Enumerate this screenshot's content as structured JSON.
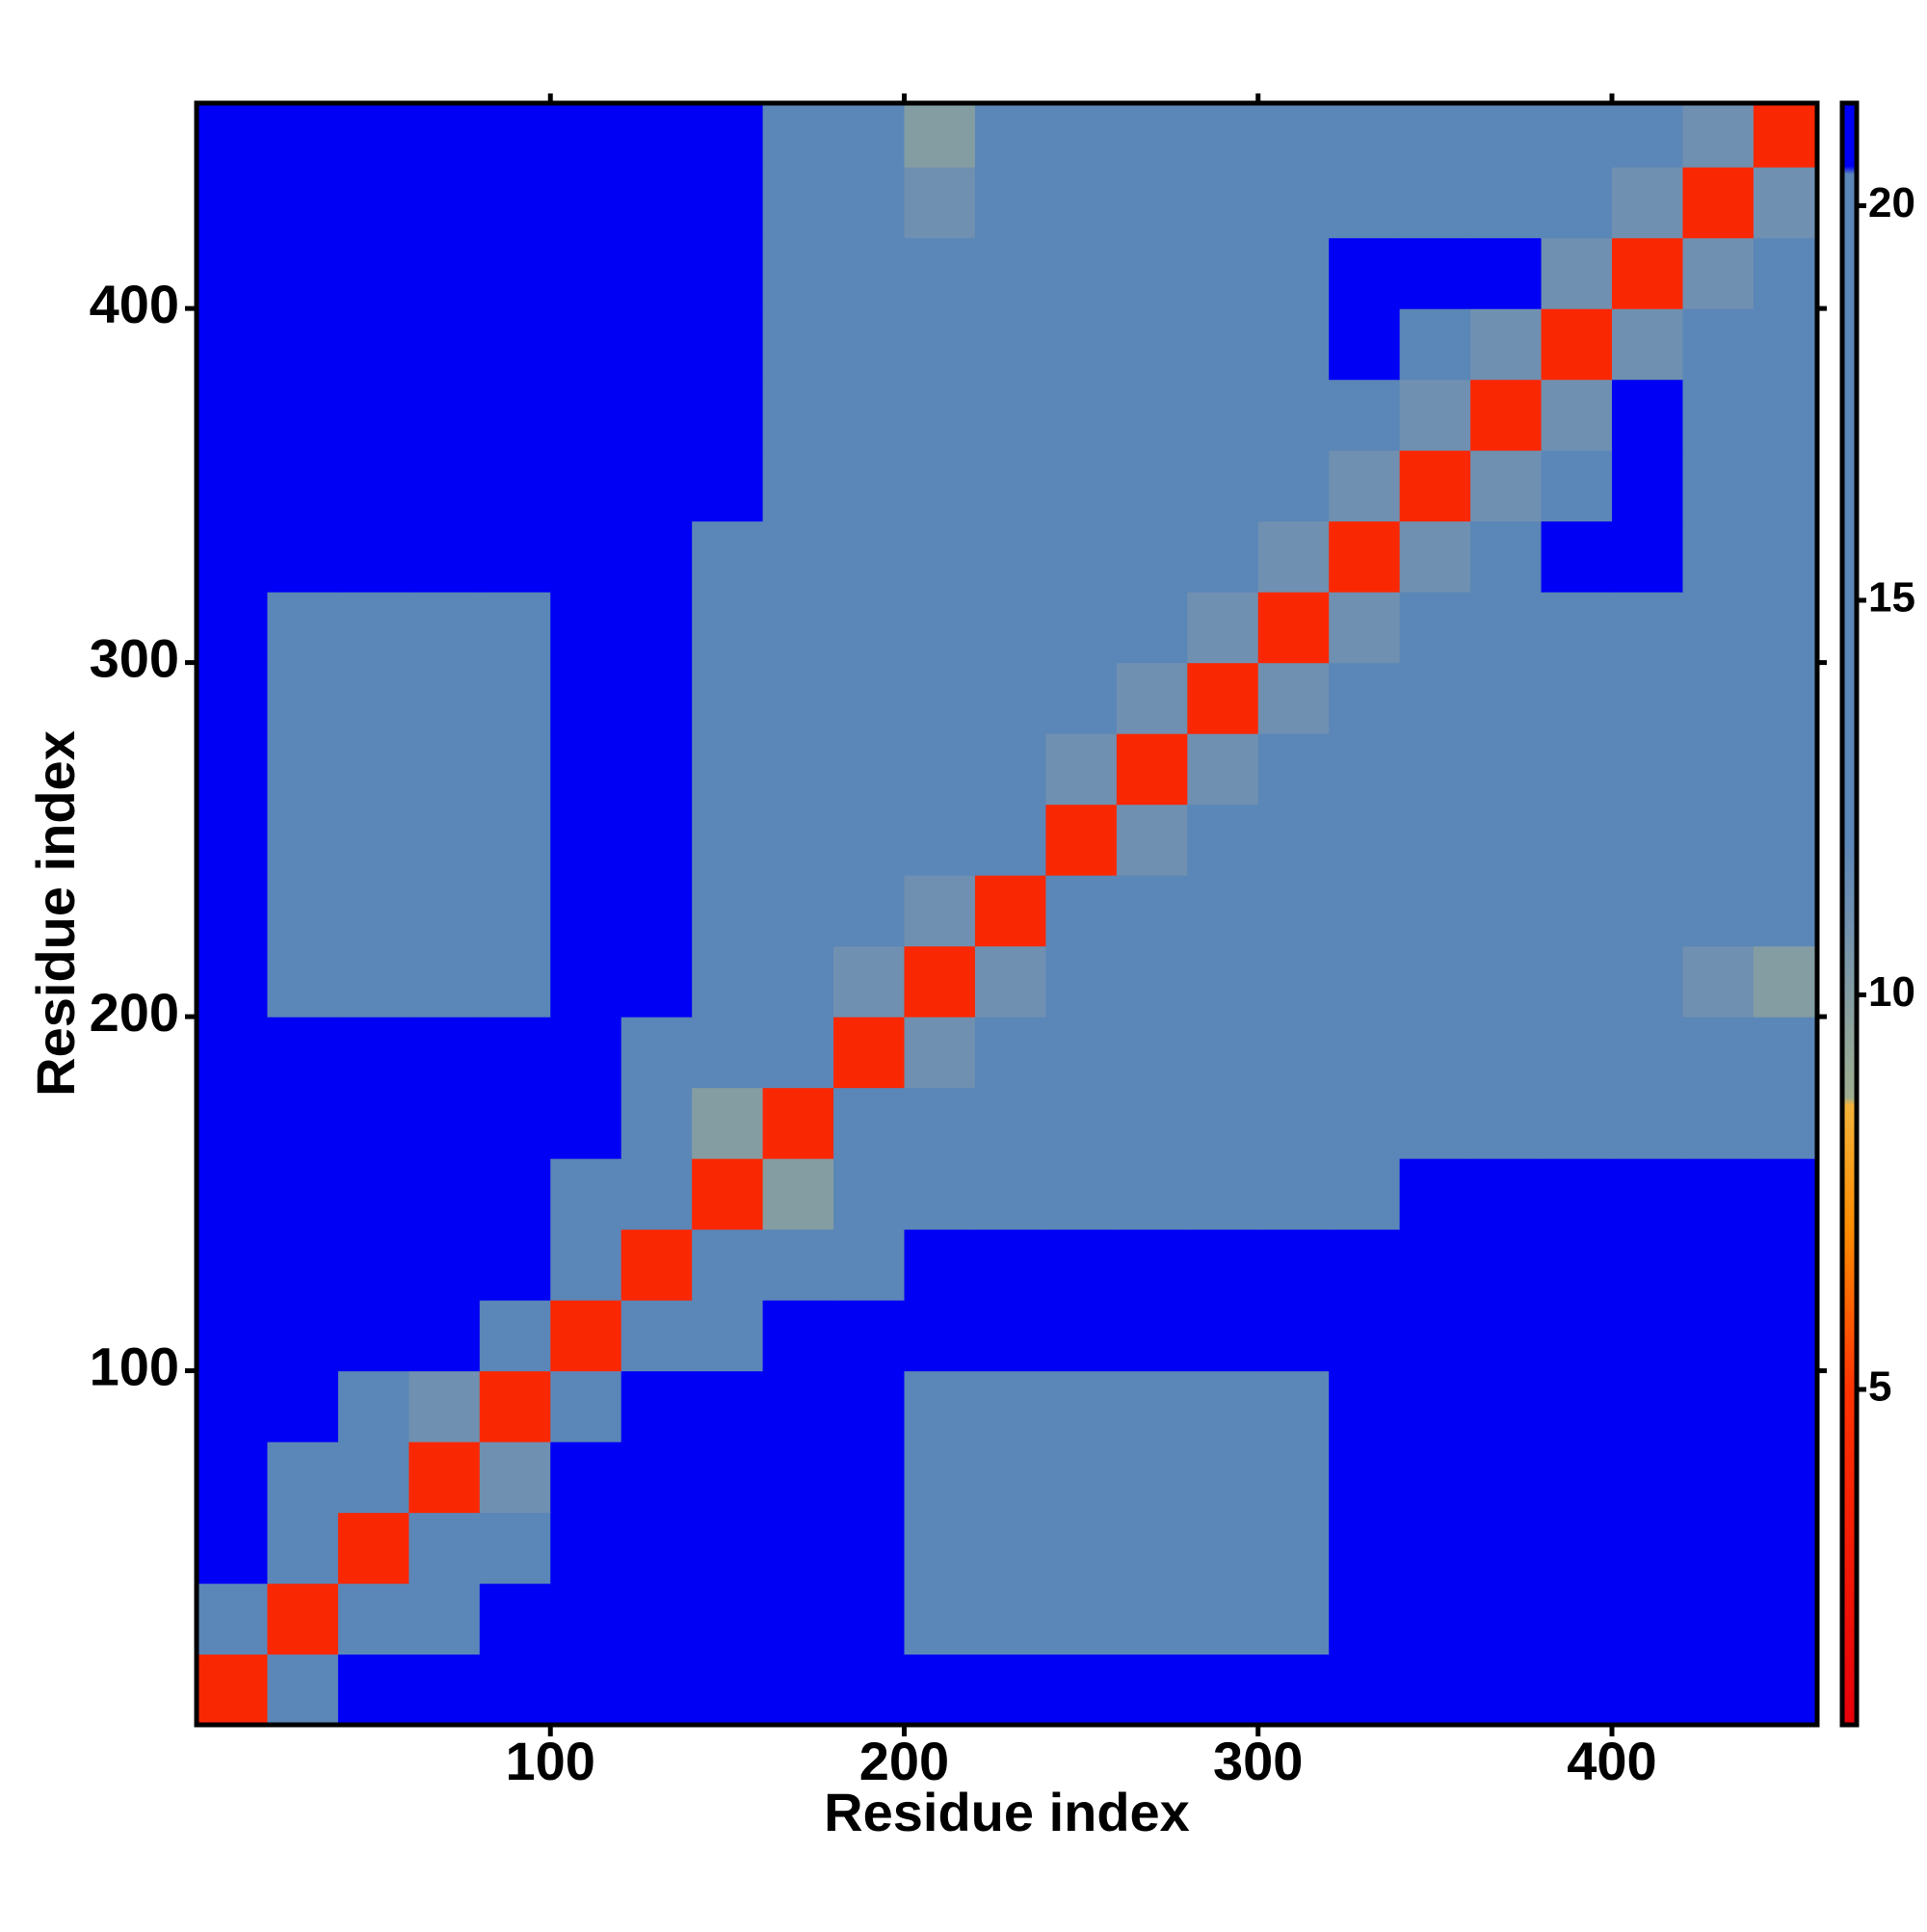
{
  "chart_data": {
    "type": "heatmap",
    "xlabel": "Residue index",
    "ylabel": "Residue index",
    "x_bins": [
      0,
      20,
      40,
      60,
      80,
      100,
      120,
      140,
      160,
      180,
      200,
      220,
      240,
      260,
      280,
      300,
      320,
      340,
      360,
      380,
      400,
      420,
      440,
      458
    ],
    "y_bins": [
      0,
      20,
      40,
      60,
      80,
      100,
      120,
      140,
      160,
      180,
      200,
      220,
      240,
      260,
      280,
      300,
      320,
      340,
      360,
      380,
      400,
      420,
      440,
      458
    ],
    "xlim": [
      0,
      458
    ],
    "ylim": [
      0,
      458
    ],
    "xticks": [
      100,
      200,
      300,
      400
    ],
    "yticks": [
      100,
      200,
      300,
      400
    ],
    "colorbar": {
      "lim": [
        0.75,
        21.3
      ],
      "ticks": [
        5,
        10,
        15,
        20
      ]
    },
    "colorscale": [
      [
        0.75,
        "#e8000b"
      ],
      [
        5,
        "#ff3300"
      ],
      [
        7,
        "#ff8c00"
      ],
      [
        8.6,
        "#f2b33a"
      ],
      [
        8.7,
        "#9fae90"
      ],
      [
        11,
        "#6f90b0"
      ],
      [
        12,
        "#5b86b8"
      ],
      [
        20.4,
        "#5b86b8"
      ],
      [
        20.5,
        "#0000f5"
      ]
    ],
    "z": [
      [
        4,
        14,
        21,
        21,
        21,
        21,
        21,
        21,
        21,
        21,
        21,
        21,
        21,
        21,
        21,
        21,
        21,
        21,
        21,
        21,
        21,
        21,
        21
      ],
      [
        14,
        4,
        13,
        20,
        21,
        21,
        21,
        21,
        21,
        21,
        20,
        20,
        20,
        20,
        20,
        20,
        21,
        21,
        21,
        21,
        21,
        21,
        21
      ],
      [
        21,
        13,
        4,
        12,
        17,
        21,
        21,
        21,
        21,
        21,
        20,
        20,
        20,
        20,
        20,
        20,
        21,
        21,
        21,
        21,
        21,
        21,
        21
      ],
      [
        21,
        20,
        12,
        4,
        11,
        21,
        21,
        21,
        21,
        21,
        20,
        20,
        20,
        20,
        20,
        20,
        21,
        21,
        21,
        21,
        21,
        21,
        21
      ],
      [
        21,
        21,
        17,
        11,
        4,
        17,
        21,
        21,
        21,
        21,
        20,
        20,
        20,
        20,
        20,
        20,
        21,
        21,
        21,
        21,
        21,
        21,
        21
      ],
      [
        21,
        21,
        21,
        21,
        17,
        4,
        18,
        20,
        21,
        21,
        21,
        21,
        21,
        21,
        21,
        21,
        21,
        21,
        21,
        21,
        21,
        21,
        21
      ],
      [
        21,
        21,
        21,
        21,
        21,
        18,
        4,
        13,
        16,
        20,
        21,
        21,
        21,
        21,
        21,
        21,
        21,
        21,
        21,
        21,
        21,
        21,
        21
      ],
      [
        21,
        21,
        21,
        21,
        21,
        20,
        13,
        4,
        10,
        18,
        19,
        19,
        19,
        19,
        19,
        19,
        19,
        21,
        21,
        21,
        21,
        21,
        21
      ],
      [
        21,
        21,
        21,
        21,
        21,
        21,
        16,
        10,
        4,
        13,
        18,
        18,
        18,
        18,
        18,
        18,
        18,
        20,
        20,
        20,
        20,
        20,
        20
      ],
      [
        21,
        21,
        21,
        21,
        21,
        21,
        20,
        18,
        13,
        4,
        11,
        14,
        16,
        16,
        16,
        16,
        16,
        16,
        16,
        16,
        18,
        19,
        19
      ],
      [
        21,
        20,
        20,
        20,
        20,
        21,
        21,
        19,
        18,
        11,
        4,
        11,
        14,
        16,
        20,
        16,
        16,
        16,
        16,
        16,
        16,
        11,
        10
      ],
      [
        21,
        20,
        20,
        20,
        20,
        21,
        21,
        19,
        18,
        14,
        11,
        4,
        13,
        12,
        16,
        16,
        16,
        16,
        16,
        16,
        19,
        16,
        16
      ],
      [
        21,
        20,
        20,
        20,
        20,
        21,
        21,
        19,
        18,
        16,
        14,
        13,
        4,
        11,
        14,
        16,
        18,
        16,
        16,
        16,
        16,
        16,
        16
      ],
      [
        21,
        20,
        20,
        20,
        20,
        21,
        21,
        19,
        18,
        16,
        16,
        12,
        11,
        4,
        11,
        14,
        20,
        12,
        16,
        12,
        16,
        16,
        16
      ],
      [
        21,
        20,
        20,
        20,
        20,
        21,
        21,
        19,
        18,
        16,
        20,
        16,
        14,
        11,
        4,
        11,
        14,
        16,
        20,
        16,
        16,
        16,
        16
      ],
      [
        21,
        20,
        20,
        20,
        20,
        21,
        21,
        19,
        18,
        16,
        16,
        16,
        16,
        14,
        11,
        4,
        11,
        14,
        16,
        16,
        16,
        16,
        16
      ],
      [
        21,
        21,
        21,
        21,
        21,
        21,
        21,
        19,
        18,
        16,
        16,
        16,
        18,
        20,
        14,
        11,
        4,
        11,
        14,
        21,
        21,
        16,
        16
      ],
      [
        21,
        21,
        21,
        21,
        21,
        21,
        21,
        21,
        20,
        16,
        16,
        16,
        16,
        12,
        16,
        14,
        11,
        4,
        11,
        14,
        21,
        16,
        16
      ],
      [
        21,
        21,
        21,
        21,
        21,
        21,
        21,
        21,
        20,
        16,
        16,
        16,
        16,
        16,
        20,
        16,
        14,
        11,
        4,
        11,
        21,
        16,
        16
      ],
      [
        21,
        21,
        21,
        21,
        21,
        21,
        21,
        21,
        20,
        16,
        16,
        16,
        16,
        12,
        16,
        16,
        21,
        14,
        11,
        4,
        11,
        14,
        16
      ],
      [
        21,
        21,
        21,
        21,
        21,
        21,
        21,
        21,
        20,
        18,
        16,
        19,
        16,
        16,
        16,
        16,
        21,
        21,
        21,
        11,
        4,
        11,
        14
      ],
      [
        21,
        21,
        21,
        21,
        21,
        21,
        21,
        21,
        20,
        19,
        11,
        16,
        16,
        16,
        16,
        16,
        16,
        16,
        16,
        14,
        11,
        4,
        11
      ],
      [
        21,
        21,
        21,
        21,
        21,
        21,
        21,
        21,
        20,
        19,
        10,
        16,
        16,
        16,
        16,
        16,
        16,
        16,
        16,
        16,
        14,
        11,
        4
      ]
    ]
  }
}
